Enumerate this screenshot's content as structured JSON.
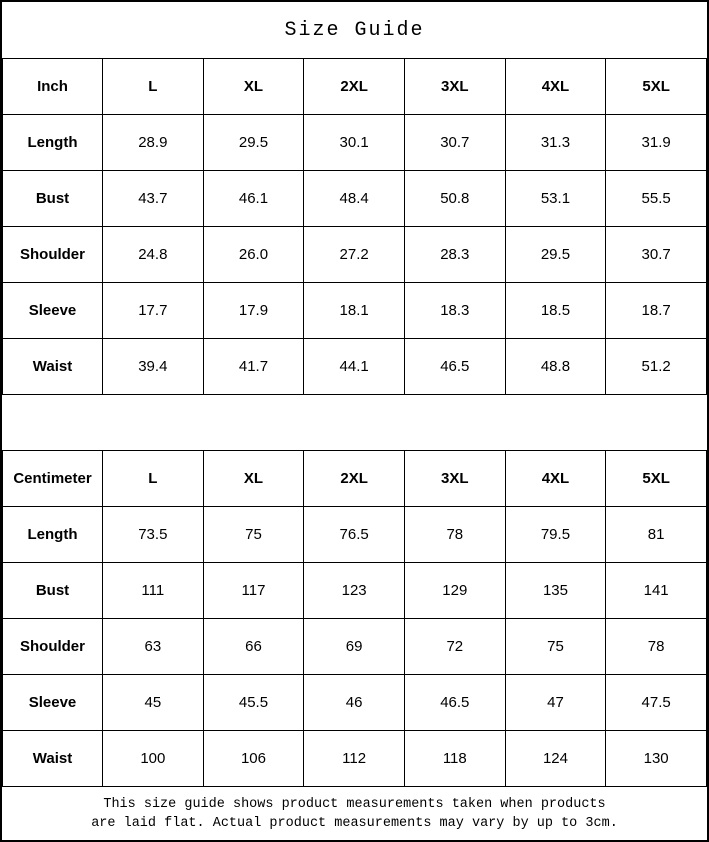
{
  "title": "Size Guide",
  "colors": {
    "background": "#ffffff",
    "border": "#000000",
    "text": "#000000"
  },
  "chart_data": [
    {
      "type": "table",
      "title": "Size Guide (Inch)",
      "unit_label": "Inch",
      "columns": [
        "Inch",
        "L",
        "XL",
        "2XL",
        "3XL",
        "4XL",
        "5XL"
      ],
      "rows": [
        {
          "label": "Length",
          "values": [
            "28.9",
            "29.5",
            "30.1",
            "30.7",
            "31.3",
            "31.9"
          ]
        },
        {
          "label": "Bust",
          "values": [
            "43.7",
            "46.1",
            "48.4",
            "50.8",
            "53.1",
            "55.5"
          ]
        },
        {
          "label": "Shoulder",
          "values": [
            "24.8",
            "26.0",
            "27.2",
            "28.3",
            "29.5",
            "30.7"
          ]
        },
        {
          "label": "Sleeve",
          "values": [
            "17.7",
            "17.9",
            "18.1",
            "18.3",
            "18.5",
            "18.7"
          ]
        },
        {
          "label": "Waist",
          "values": [
            "39.4",
            "41.7",
            "44.1",
            "46.5",
            "48.8",
            "51.2"
          ]
        }
      ]
    },
    {
      "type": "table",
      "title": "Size Guide (Centimeter)",
      "unit_label": "Centimeter",
      "columns": [
        "Centimeter",
        "L",
        "XL",
        "2XL",
        "3XL",
        "4XL",
        "5XL"
      ],
      "rows": [
        {
          "label": "Length",
          "values": [
            "73.5",
            "75",
            "76.5",
            "78",
            "79.5",
            "81"
          ]
        },
        {
          "label": "Bust",
          "values": [
            "111",
            "117",
            "123",
            "129",
            "135",
            "141"
          ]
        },
        {
          "label": "Shoulder",
          "values": [
            "63",
            "66",
            "69",
            "72",
            "75",
            "78"
          ]
        },
        {
          "label": "Sleeve",
          "values": [
            "45",
            "45.5",
            "46",
            "46.5",
            "47",
            "47.5"
          ]
        },
        {
          "label": "Waist",
          "values": [
            "100",
            "106",
            "112",
            "118",
            "124",
            "130"
          ]
        }
      ]
    }
  ],
  "footer": {
    "line1": "This size guide shows product measurements taken when products",
    "line2": "are laid flat. Actual product measurements may vary by up to 3cm."
  }
}
